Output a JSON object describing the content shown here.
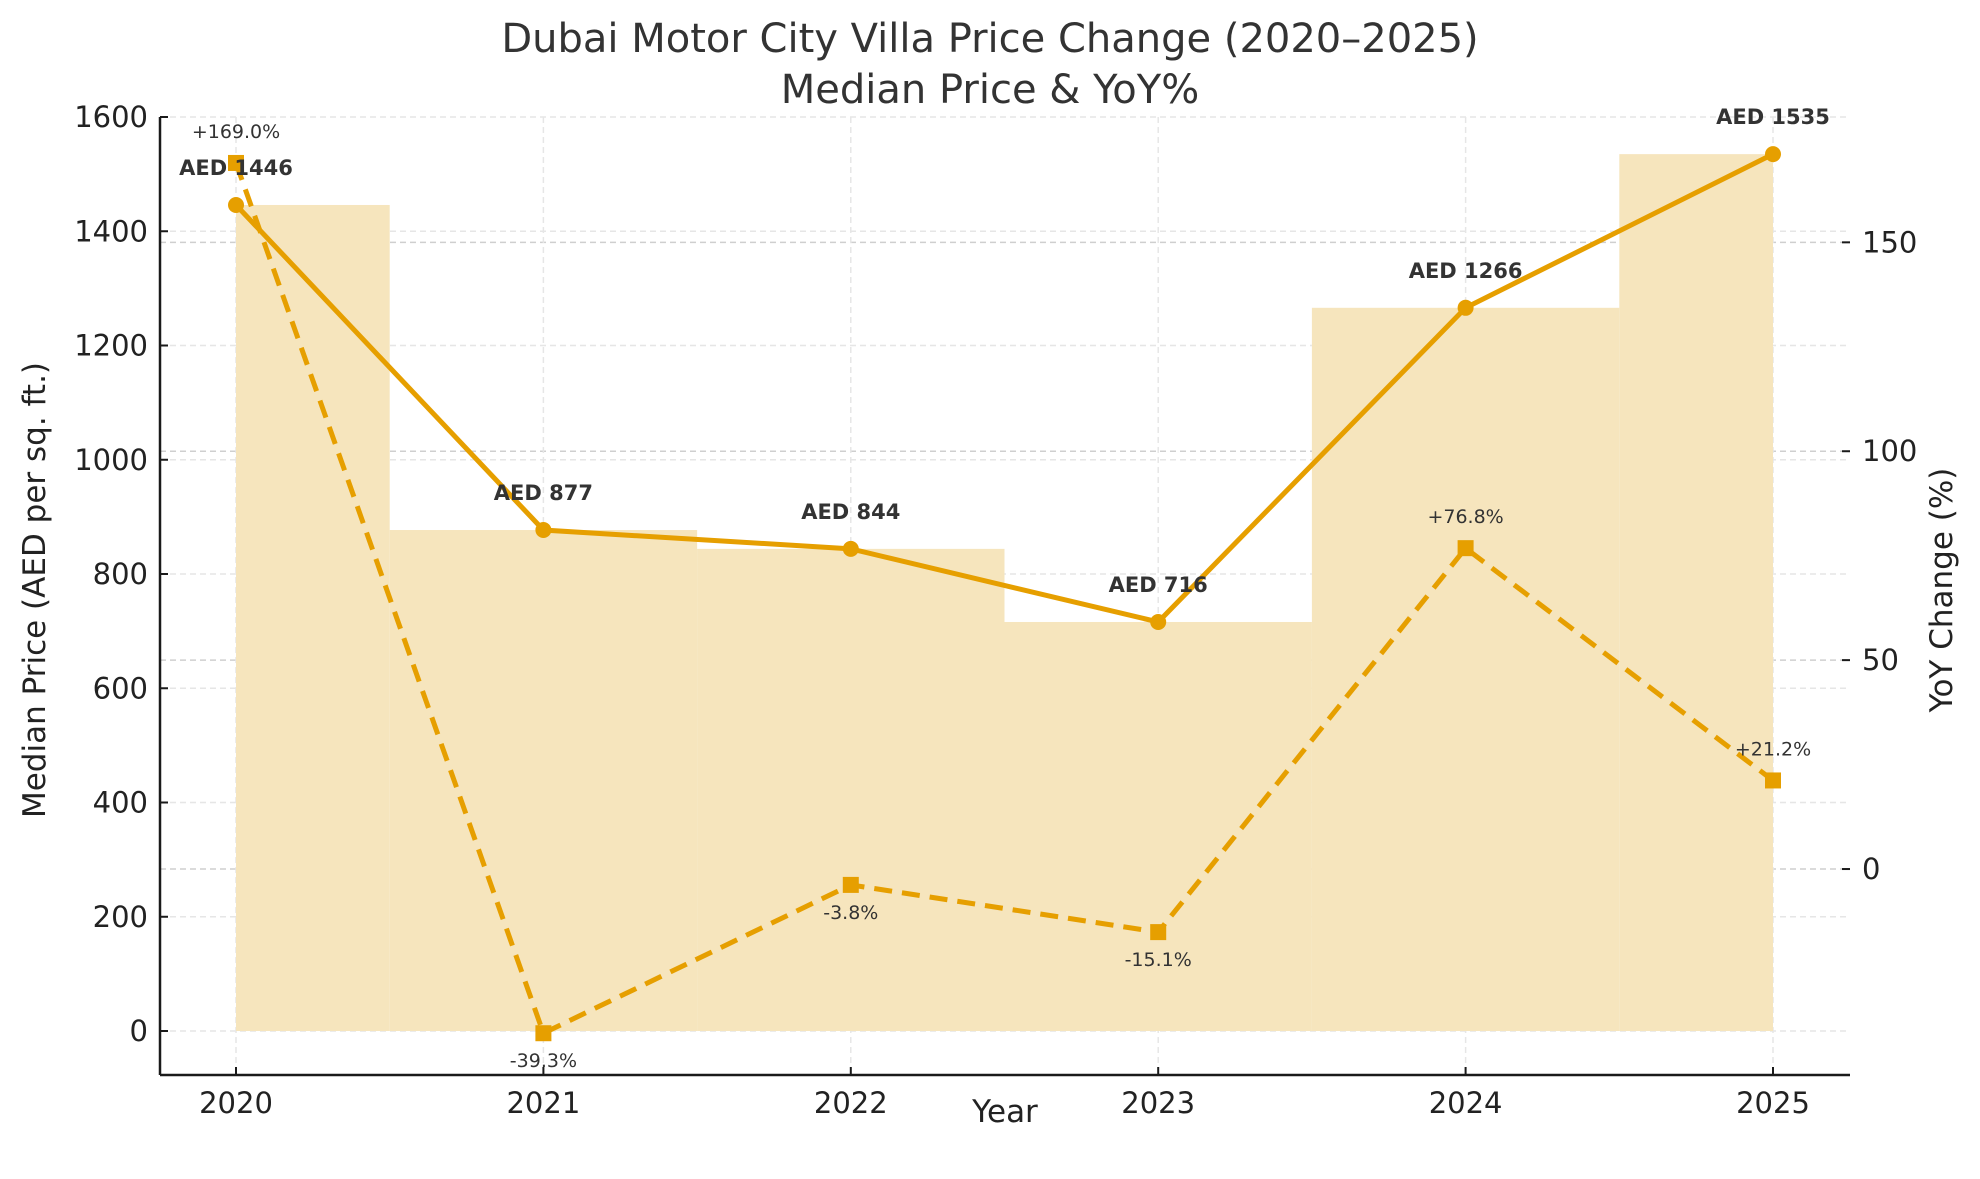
{
  "chart_data": {
    "type": "bar+line",
    "title": "Dubai Motor City Villa Price Change (2020–2025)",
    "subtitle": "Median Price & YoY%",
    "xlabel": "Year",
    "ylabel": "Median Price (AED per sq. ft.)",
    "ylabel_right": "YoY Change (%)",
    "categories": [
      "2020",
      "2021",
      "2022",
      "2023",
      "2024",
      "2025"
    ],
    "ylim": [
      -77,
      1600
    ],
    "ylim_right": [
      -49.3,
      180
    ],
    "yticks": [
      0,
      200,
      400,
      600,
      800,
      1000,
      1200,
      1400,
      1600
    ],
    "yticks_right": [
      0,
      50,
      100,
      150
    ],
    "grid": true,
    "series": [
      {
        "name": "Median Price (bars)",
        "type": "bar",
        "values": [
          1446,
          877,
          844,
          716,
          1266,
          1535
        ],
        "color": "#f6e5bd"
      },
      {
        "name": "Median Price",
        "type": "line",
        "axis": "left",
        "values": [
          1446,
          877,
          844,
          716,
          1266,
          1535
        ],
        "labels": [
          "AED 1446",
          "AED 877",
          "AED 844",
          "AED 716",
          "AED 1266",
          "AED 1535"
        ],
        "color": "#e69f00",
        "marker": "circle",
        "linestyle": "solid"
      },
      {
        "name": "YoY Change",
        "type": "line",
        "axis": "right",
        "values": [
          169.0,
          -39.3,
          -3.8,
          -15.1,
          76.8,
          21.2
        ],
        "labels": [
          "+169.0%",
          "-39.3%",
          "-3.8%",
          "-15.1%",
          "+76.8%",
          "+21.2%"
        ],
        "color": "#e69f00",
        "marker": "square",
        "linestyle": "dashed"
      }
    ]
  }
}
